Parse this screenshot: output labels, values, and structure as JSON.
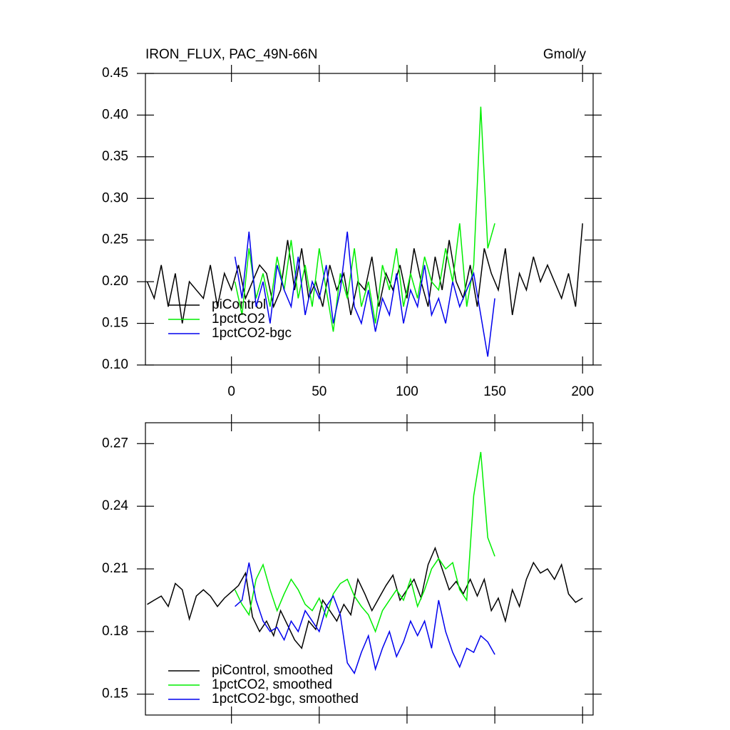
{
  "chart_data": [
    {
      "type": "line",
      "title": "IRON_FLUX, PAC_49N-66N",
      "units": "Gmol/y",
      "xlim": [
        -49,
        206
      ],
      "xticks": [
        0,
        50,
        100,
        150,
        200
      ],
      "ylim": [
        0.1,
        0.45
      ],
      "yticks": [
        {
          "value": 0.1,
          "label": "0.10"
        },
        0.15,
        {
          "value": 0.2,
          "label": "0.20"
        },
        0.25,
        {
          "value": 0.3,
          "label": "0.30"
        },
        0.35,
        {
          "value": 0.4,
          "label": "0.40"
        },
        0.45
      ],
      "legend": "lower left",
      "series": [
        {
          "name": "piControl",
          "color": "#000000",
          "x": [
            -48,
            -44,
            -40,
            -36,
            -32,
            -28,
            -24,
            -20,
            -16,
            -12,
            -8,
            -4,
            0,
            4,
            8,
            12,
            16,
            20,
            24,
            28,
            32,
            36,
            40,
            44,
            48,
            52,
            56,
            60,
            64,
            68,
            72,
            76,
            80,
            84,
            88,
            92,
            96,
            100,
            104,
            108,
            112,
            116,
            120,
            124,
            128,
            132,
            136,
            140,
            144,
            148,
            152,
            156,
            160,
            164,
            168,
            172,
            176,
            180,
            184,
            188,
            192,
            196,
            200
          ],
          "values": [
            0.2,
            0.18,
            0.22,
            0.17,
            0.21,
            0.15,
            0.2,
            0.19,
            0.18,
            0.22,
            0.17,
            0.21,
            0.19,
            0.22,
            0.18,
            0.2,
            0.22,
            0.21,
            0.17,
            0.19,
            0.25,
            0.19,
            0.24,
            0.18,
            0.2,
            0.17,
            0.22,
            0.19,
            0.21,
            0.16,
            0.2,
            0.19,
            0.23,
            0.17,
            0.21,
            0.19,
            0.22,
            0.18,
            0.24,
            0.2,
            0.17,
            0.23,
            0.19,
            0.25,
            0.2,
            0.18,
            0.22,
            0.17,
            0.24,
            0.21,
            0.19,
            0.24,
            0.16,
            0.21,
            0.19,
            0.23,
            0.2,
            0.22,
            0.2,
            0.18,
            0.21,
            0.17,
            0.27
          ]
        },
        {
          "name": "1pctCO2",
          "color": "#00ee00",
          "x": [
            2,
            6,
            10,
            14,
            18,
            22,
            26,
            30,
            34,
            38,
            42,
            46,
            50,
            54,
            58,
            62,
            66,
            70,
            74,
            78,
            82,
            86,
            90,
            94,
            98,
            102,
            106,
            110,
            114,
            118,
            122,
            126,
            130,
            134,
            138,
            142,
            146,
            150
          ],
          "values": [
            0.2,
            0.16,
            0.24,
            0.18,
            0.21,
            0.17,
            0.23,
            0.19,
            0.25,
            0.18,
            0.22,
            0.17,
            0.24,
            0.19,
            0.14,
            0.21,
            0.18,
            0.24,
            0.17,
            0.2,
            0.15,
            0.22,
            0.19,
            0.24,
            0.17,
            0.21,
            0.18,
            0.23,
            0.2,
            0.19,
            0.24,
            0.2,
            0.27,
            0.17,
            0.22,
            0.41,
            0.24,
            0.27
          ]
        },
        {
          "name": "1pctCO2-bgc",
          "color": "#0000ee",
          "x": [
            2,
            6,
            10,
            14,
            18,
            22,
            26,
            30,
            34,
            38,
            42,
            46,
            50,
            54,
            58,
            62,
            66,
            70,
            74,
            78,
            82,
            86,
            90,
            94,
            98,
            102,
            106,
            110,
            114,
            118,
            122,
            126,
            130,
            134,
            138,
            142,
            146,
            150
          ],
          "values": [
            0.23,
            0.18,
            0.26,
            0.17,
            0.2,
            0.15,
            0.22,
            0.19,
            0.17,
            0.23,
            0.16,
            0.2,
            0.18,
            0.22,
            0.15,
            0.19,
            0.26,
            0.17,
            0.15,
            0.19,
            0.14,
            0.18,
            0.16,
            0.21,
            0.15,
            0.19,
            0.17,
            0.22,
            0.16,
            0.18,
            0.15,
            0.2,
            0.17,
            0.19,
            0.21,
            0.16,
            0.11,
            0.18
          ]
        }
      ]
    },
    {
      "type": "line",
      "xlim": [
        -49,
        206
      ],
      "xticks": [
        0,
        50,
        100,
        150,
        200
      ],
      "ylim": [
        0.14,
        0.28
      ],
      "yticks": [
        0.15,
        0.18,
        0.21,
        0.24,
        0.27
      ],
      "legend": "lower left",
      "series": [
        {
          "name": "piControl, smoothed",
          "color": "#000000",
          "x": [
            -48,
            -44,
            -40,
            -36,
            -32,
            -28,
            -24,
            -20,
            -16,
            -12,
            -8,
            -4,
            0,
            4,
            8,
            12,
            16,
            20,
            24,
            28,
            32,
            36,
            40,
            44,
            48,
            52,
            56,
            60,
            64,
            68,
            72,
            76,
            80,
            84,
            88,
            92,
            96,
            100,
            104,
            108,
            112,
            116,
            120,
            124,
            128,
            132,
            136,
            140,
            144,
            148,
            152,
            156,
            160,
            164,
            168,
            172,
            176,
            180,
            184,
            188,
            192,
            196,
            200
          ],
          "values": [
            0.193,
            0.195,
            0.197,
            0.192,
            0.203,
            0.2,
            0.186,
            0.197,
            0.2,
            0.197,
            0.192,
            0.196,
            0.199,
            0.202,
            0.208,
            0.187,
            0.18,
            0.185,
            0.178,
            0.19,
            0.183,
            0.176,
            0.172,
            0.185,
            0.181,
            0.195,
            0.19,
            0.185,
            0.193,
            0.188,
            0.205,
            0.198,
            0.19,
            0.196,
            0.202,
            0.207,
            0.195,
            0.2,
            0.205,
            0.196,
            0.212,
            0.22,
            0.21,
            0.2,
            0.204,
            0.198,
            0.205,
            0.197,
            0.205,
            0.19,
            0.196,
            0.185,
            0.2,
            0.192,
            0.205,
            0.213,
            0.208,
            0.21,
            0.205,
            0.212,
            0.198,
            0.194,
            0.196
          ]
        },
        {
          "name": "1pctCO2, smoothed",
          "color": "#00ee00",
          "x": [
            2,
            6,
            10,
            14,
            18,
            22,
            26,
            30,
            34,
            38,
            42,
            46,
            50,
            54,
            58,
            62,
            66,
            70,
            74,
            78,
            82,
            86,
            90,
            94,
            98,
            102,
            106,
            110,
            114,
            118,
            122,
            126,
            130,
            134,
            138,
            142,
            146,
            150
          ],
          "values": [
            0.2,
            0.193,
            0.188,
            0.205,
            0.212,
            0.2,
            0.19,
            0.198,
            0.205,
            0.2,
            0.193,
            0.19,
            0.196,
            0.187,
            0.198,
            0.203,
            0.205,
            0.197,
            0.192,
            0.188,
            0.18,
            0.19,
            0.195,
            0.2,
            0.195,
            0.205,
            0.192,
            0.2,
            0.21,
            0.215,
            0.21,
            0.213,
            0.2,
            0.195,
            0.245,
            0.266,
            0.225,
            0.216
          ]
        },
        {
          "name": "1pctCO2-bgc, smoothed",
          "color": "#0000ee",
          "x": [
            2,
            6,
            10,
            14,
            18,
            22,
            26,
            30,
            34,
            38,
            42,
            46,
            50,
            54,
            58,
            62,
            66,
            70,
            74,
            78,
            82,
            86,
            90,
            94,
            98,
            102,
            106,
            110,
            114,
            118,
            122,
            126,
            130,
            134,
            138,
            142,
            146,
            150
          ],
          "values": [
            0.192,
            0.195,
            0.213,
            0.195,
            0.185,
            0.18,
            0.182,
            0.176,
            0.185,
            0.18,
            0.19,
            0.185,
            0.18,
            0.192,
            0.197,
            0.188,
            0.165,
            0.16,
            0.17,
            0.178,
            0.162,
            0.172,
            0.18,
            0.168,
            0.175,
            0.185,
            0.178,
            0.185,
            0.172,
            0.195,
            0.18,
            0.17,
            0.163,
            0.172,
            0.17,
            0.178,
            0.175,
            0.169
          ]
        }
      ]
    }
  ]
}
